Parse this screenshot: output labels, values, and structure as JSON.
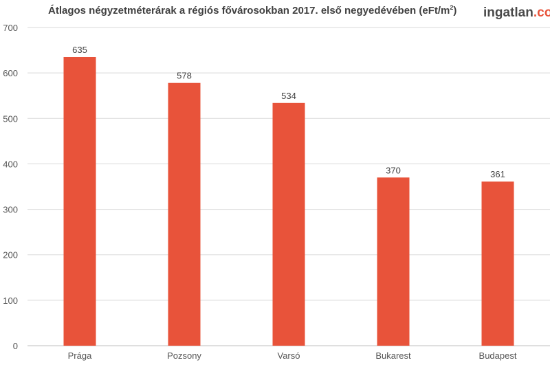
{
  "title": {
    "text": "Átlagos négyzetméterárak a régiós fővárosokban 2017. első negyedévében (eFt/m",
    "superscript": "2",
    "suffix": ")"
  },
  "logo": {
    "part1": "ingatlan",
    "part2": ".com"
  },
  "colors": {
    "bar": "#e8533a",
    "grid": "#d9d9d9",
    "axis": "#bfbfbf"
  },
  "chart_data": {
    "type": "bar",
    "title": "Átlagos négyzetméterárak a régiós fővárosokban 2017. első negyedévében (eFt/m²)",
    "categories": [
      "Prága",
      "Pozsony",
      "Varsó",
      "Bukarest",
      "Budapest"
    ],
    "values": [
      635,
      578,
      534,
      370,
      361
    ],
    "ylim": [
      0,
      700
    ],
    "yticks": [
      0,
      100,
      200,
      300,
      400,
      500,
      600,
      700
    ],
    "grid": true,
    "data_labels": true
  }
}
